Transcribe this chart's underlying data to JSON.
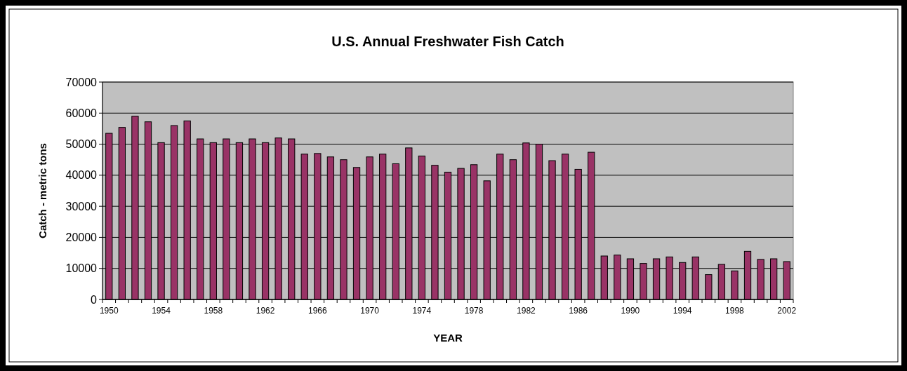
{
  "chart_data": {
    "type": "bar",
    "title": "U.S. Annual Freshwater Fish Catch",
    "xlabel": "YEAR",
    "ylabel": "Catch - metric tons",
    "categories": [
      "1950",
      null,
      null,
      null,
      "1954",
      null,
      null,
      null,
      "1958",
      null,
      null,
      null,
      "1962",
      null,
      null,
      null,
      "1966",
      null,
      null,
      null,
      "1970",
      null,
      null,
      null,
      "1974",
      null,
      null,
      null,
      "1978",
      null,
      null,
      null,
      "1982",
      null,
      null,
      null,
      "1986",
      null,
      null,
      null,
      "1990",
      null,
      null,
      null,
      "1994",
      null,
      null,
      null,
      "1998",
      null,
      null,
      null,
      "2002"
    ],
    "values": [
      53500,
      55400,
      59000,
      57200,
      50500,
      56000,
      57500,
      51700,
      50500,
      51700,
      50500,
      51700,
      50500,
      52000,
      51700,
      46800,
      47000,
      45900,
      45000,
      42500,
      45900,
      46800,
      43700,
      48800,
      46200,
      43200,
      41000,
      42200,
      43400,
      38200,
      46800,
      45000,
      50400,
      50000,
      44700,
      46800,
      41900,
      47400,
      14000,
      14300,
      13100,
      11600,
      13100,
      13700,
      11900,
      13700,
      8000,
      11300,
      9200,
      15500,
      12900,
      13100,
      12200
    ],
    "color": "#993366",
    "ylim": [
      0,
      70000
    ],
    "yticks": [
      0,
      10000,
      20000,
      30000,
      40000,
      50000,
      60000,
      70000
    ],
    "grid": "y"
  }
}
